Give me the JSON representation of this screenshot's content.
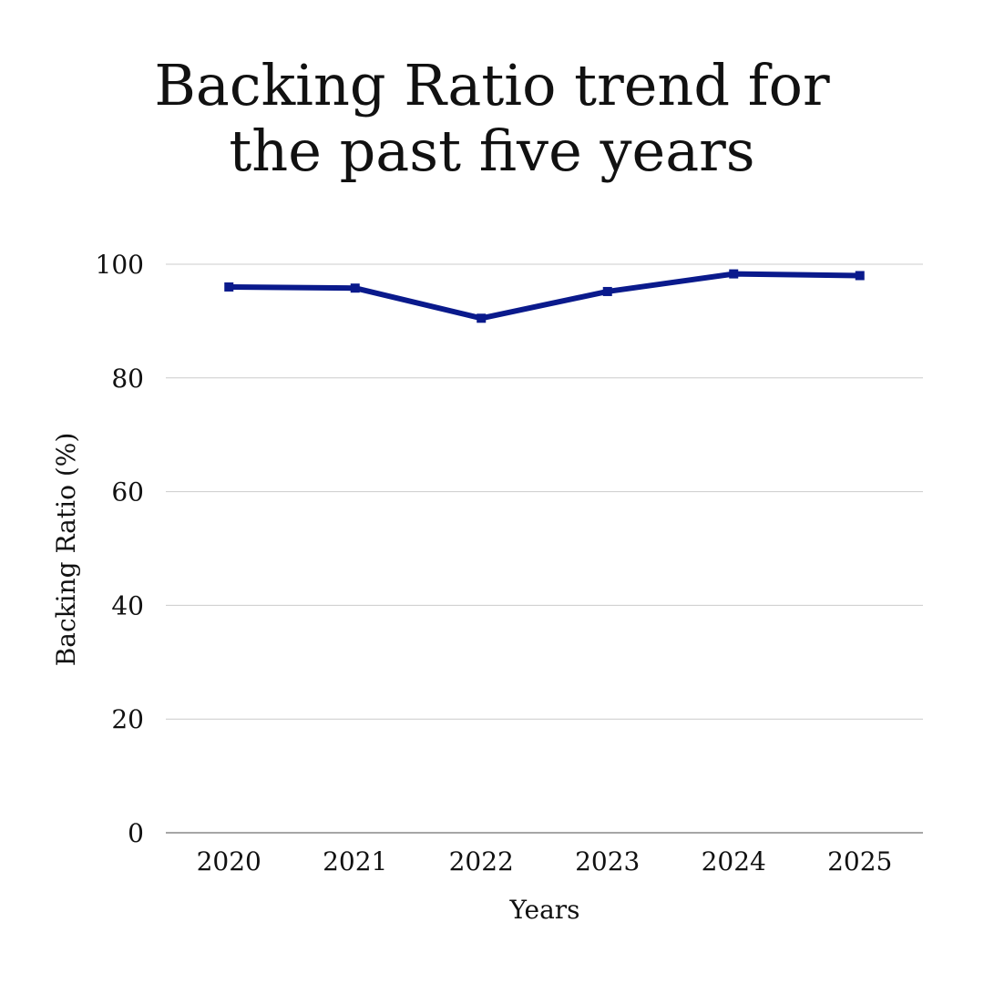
{
  "chart_data": {
    "type": "line",
    "title_lines": [
      "Backing Ratio trend for",
      "the past five years"
    ],
    "xlabel": "Years",
    "ylabel": "Backing Ratio (%)",
    "categories": [
      "2020",
      "2021",
      "2022",
      "2023",
      "2024",
      "2025"
    ],
    "series": [
      {
        "values": [
          96.0,
          95.8,
          90.5,
          95.2,
          98.3,
          98.0
        ]
      }
    ],
    "ylim": [
      0,
      100
    ],
    "yticks": [
      0,
      20,
      40,
      60,
      80,
      100
    ],
    "grid": true,
    "legend": "none",
    "line_color": "#0a1a8c",
    "grid_color": "#cccccc",
    "axis_color": "#888888"
  }
}
